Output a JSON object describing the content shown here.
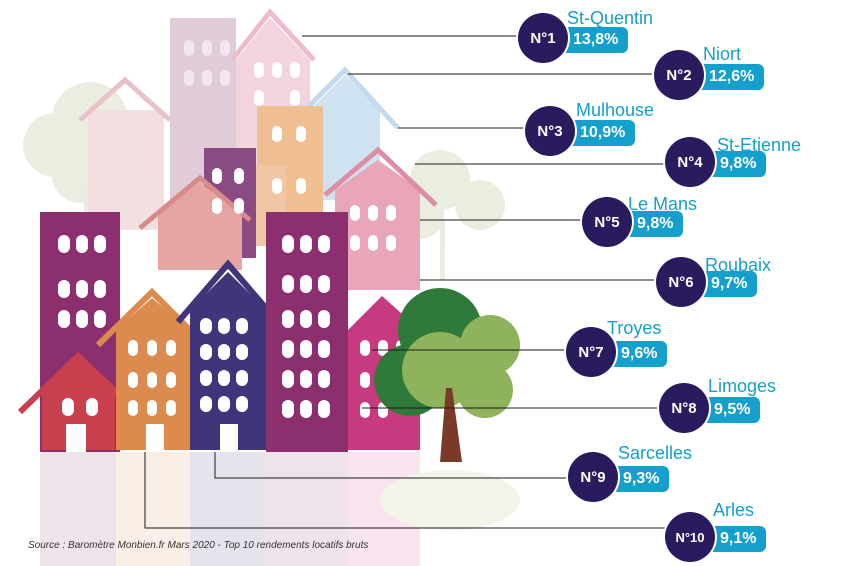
{
  "chart_data": {
    "type": "table",
    "title": "",
    "columns": [
      "rank",
      "city",
      "value"
    ],
    "rows": [
      {
        "rank": "N°1",
        "city": "St-Quentin",
        "value": 13.8,
        "label": "13,8%"
      },
      {
        "rank": "N°2",
        "city": "Niort",
        "value": 12.6,
        "label": "12,6%"
      },
      {
        "rank": "N°3",
        "city": "Mulhouse",
        "value": 10.9,
        "label": "10,9%"
      },
      {
        "rank": "N°4",
        "city": "St-Etienne",
        "value": 9.8,
        "label": "9,8%"
      },
      {
        "rank": "N°5",
        "city": "Le Mans",
        "value": 9.8,
        "label": "9,8%"
      },
      {
        "rank": "N°6",
        "city": "Roubaix",
        "value": 9.7,
        "label": "9,7%"
      },
      {
        "rank": "N°7",
        "city": "Troyes",
        "value": 9.6,
        "label": "9,6%"
      },
      {
        "rank": "N°8",
        "city": "Limoges",
        "value": 9.5,
        "label": "9,5%"
      },
      {
        "rank": "N°9",
        "city": "Sarcelles",
        "value": 9.3,
        "label": "9,3%"
      },
      {
        "rank": "N°10",
        "city": "Arles",
        "value": 9.1,
        "label": "9,1%"
      }
    ],
    "colors": {
      "rank_circle": "#2a1b5e",
      "value_bar": "#159fcc",
      "city_text": "#159fcc"
    }
  },
  "source": "Source : Baromètre Monbien.fr Mars 2020 - Top 10 rendements locatifs bruts"
}
